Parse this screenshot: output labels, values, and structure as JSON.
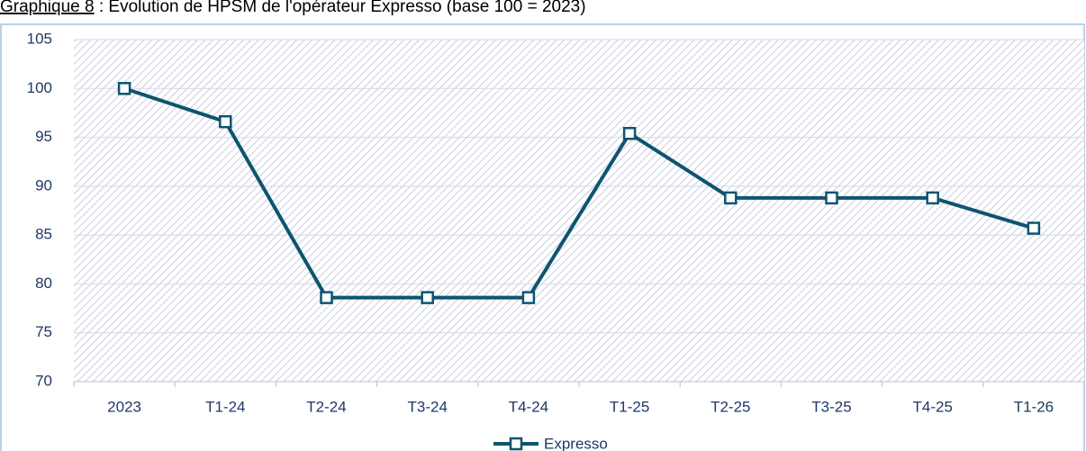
{
  "chart_data": {
    "type": "line",
    "title_label": "Graphique 8",
    "title": " : Evolution de HPSM de l'opérateur Expresso (base 100 = 2023)",
    "categories": [
      "2023",
      "T1-24",
      "T2-24",
      "T3-24",
      "T4-24",
      "T1-25",
      "T2-25",
      "T3-25",
      "T4-25",
      "T1-26"
    ],
    "series": [
      {
        "name": "Expresso",
        "color": "#0e5470",
        "values": [
          100,
          96.6,
          78.6,
          78.6,
          78.6,
          95.4,
          88.8,
          88.8,
          88.8,
          85.7
        ]
      }
    ],
    "ylim": [
      70,
      105
    ],
    "yticks": [
      70,
      75,
      80,
      85,
      90,
      95,
      100,
      105
    ],
    "grid": true,
    "legend": "bottom"
  }
}
